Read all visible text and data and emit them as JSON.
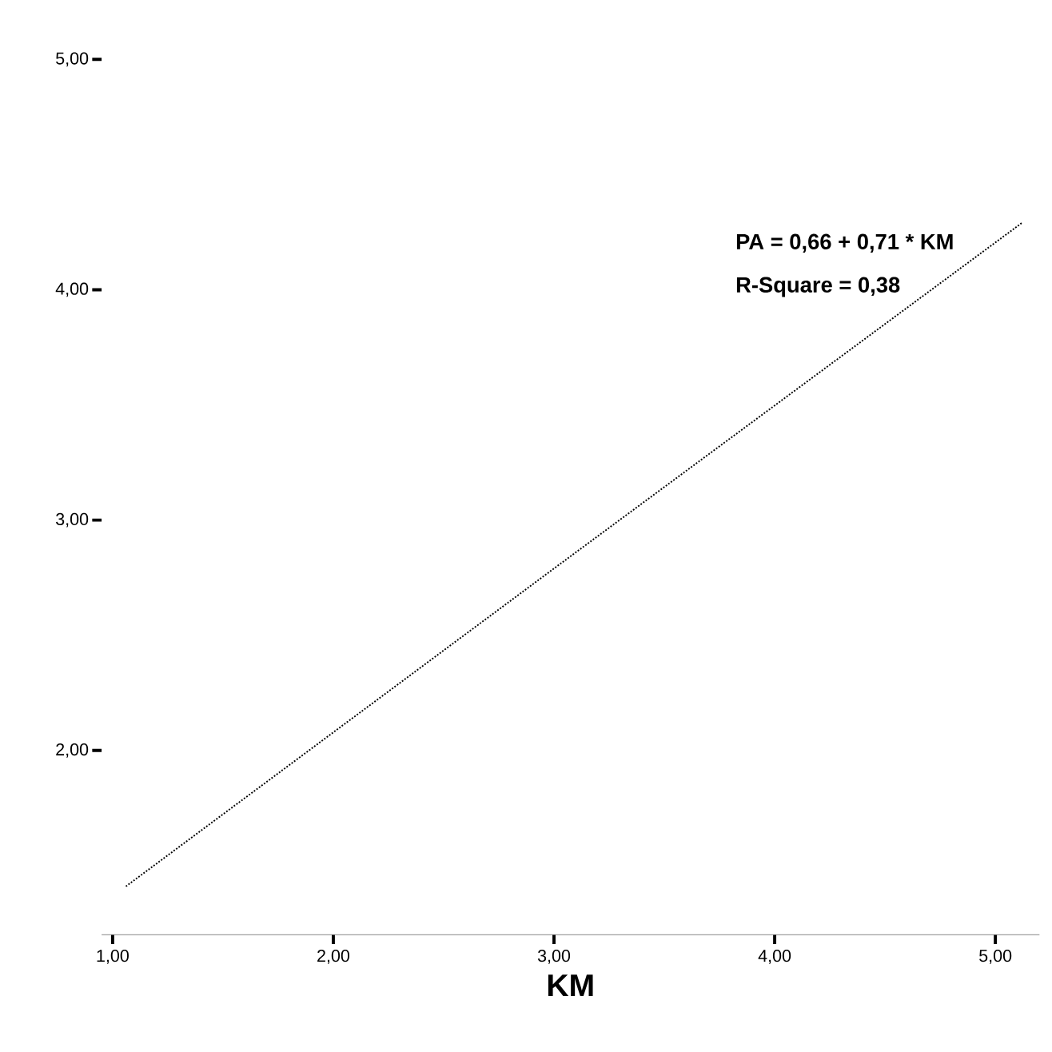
{
  "chart_data": {
    "type": "line",
    "xlabel": "KM",
    "x": [
      1.06,
      3.0,
      5.12
    ],
    "series": [
      {
        "color": "#000000",
        "values": [
          1.41,
          2.79,
          4.29
        ]
      }
    ],
    "line_style": "dotted",
    "xticks": [
      {
        "value": 1,
        "label": "1,00"
      },
      {
        "value": 2,
        "label": "2,00"
      },
      {
        "value": 3,
        "label": "3,00"
      },
      {
        "value": 4,
        "label": "4,00"
      },
      {
        "value": 5,
        "label": "5,00"
      }
    ],
    "yticks": [
      {
        "value": 2,
        "label": "2,00"
      },
      {
        "value": 3,
        "label": "3,00"
      },
      {
        "value": 4,
        "label": "4,00"
      },
      {
        "value": 5,
        "label": "5,00"
      }
    ],
    "annotations": [
      "PA = 0,66 + 0,71 * KM",
      "R-Square = 0,38"
    ],
    "xlim": [
      0.95,
      5.2
    ],
    "ylim": [
      1.2,
      5.0
    ],
    "grid": false
  }
}
